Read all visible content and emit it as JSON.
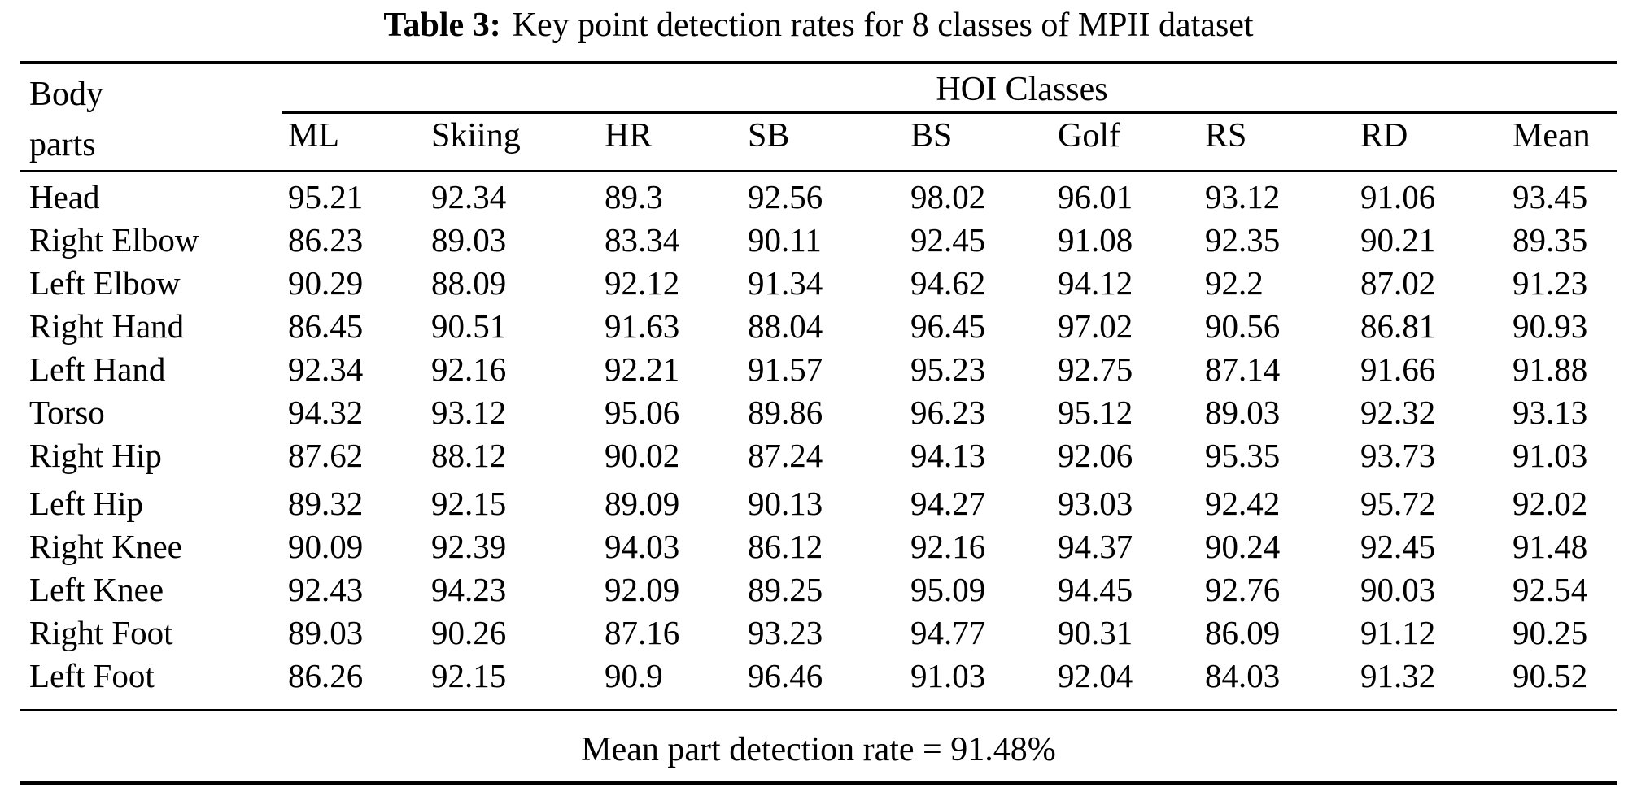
{
  "caption": {
    "label": "Table 3:",
    "text": "Key point detection rates for 8 classes of MPII dataset"
  },
  "table": {
    "body_parts_header": {
      "line1": "Body",
      "line2": "parts"
    },
    "group_header": "HOI Classes",
    "columns": [
      "ML",
      "Skiing",
      "HR",
      "SB",
      "BS",
      "Golf",
      "RS",
      "RD",
      "Mean"
    ],
    "rows": [
      {
        "part": "Head",
        "values": [
          "95.21",
          "92.34",
          "89.3",
          "92.56",
          "98.02",
          "96.01",
          "93.12",
          "91.06",
          "93.45"
        ]
      },
      {
        "part": "Right Elbow",
        "values": [
          "86.23",
          "89.03",
          "83.34",
          "90.11",
          "92.45",
          "91.08",
          "92.35",
          "90.21",
          "89.35"
        ]
      },
      {
        "part": "Left Elbow",
        "values": [
          "90.29",
          "88.09",
          "92.12",
          "91.34",
          "94.62",
          "94.12",
          "92.2",
          "87.02",
          "91.23"
        ]
      },
      {
        "part": "Right Hand",
        "values": [
          "86.45",
          "90.51",
          "91.63",
          "88.04",
          "96.45",
          "97.02",
          "90.56",
          "86.81",
          "90.93"
        ]
      },
      {
        "part": "Left Hand",
        "values": [
          "92.34",
          "92.16",
          "92.21",
          "91.57",
          "95.23",
          "92.75",
          "87.14",
          "91.66",
          "91.88"
        ]
      },
      {
        "part": "Torso",
        "values": [
          "94.32",
          "93.12",
          "95.06",
          "89.86",
          "96.23",
          "95.12",
          "89.03",
          "92.32",
          "93.13"
        ]
      },
      {
        "part": "Right Hip",
        "values": [
          "87.62",
          "88.12",
          "90.02",
          "87.24",
          "94.13",
          "92.06",
          "95.35",
          "93.73",
          "91.03"
        ]
      },
      {
        "part": "Left Hip",
        "values": [
          "89.32",
          "92.15",
          "89.09",
          "90.13",
          "94.27",
          "93.03",
          "92.42",
          "95.72",
          "92.02"
        ]
      },
      {
        "part": "Right Knee",
        "values": [
          "90.09",
          "92.39",
          "94.03",
          "86.12",
          "92.16",
          "94.37",
          "90.24",
          "92.45",
          "91.48"
        ]
      },
      {
        "part": "Left Knee",
        "values": [
          "92.43",
          "94.23",
          "92.09",
          "89.25",
          "95.09",
          "94.45",
          "92.76",
          "90.03",
          "92.54"
        ]
      },
      {
        "part": "Right Foot",
        "values": [
          "89.03",
          "90.26",
          "87.16",
          "93.23",
          "94.77",
          "90.31",
          "86.09",
          "91.12",
          "90.25"
        ]
      },
      {
        "part": "Left Foot",
        "values": [
          "86.26",
          "92.15",
          "90.9",
          "96.46",
          "91.03",
          "92.04",
          "84.03",
          "91.32",
          "90.52"
        ]
      }
    ],
    "footer": "Mean part detection rate = 91.48%"
  }
}
